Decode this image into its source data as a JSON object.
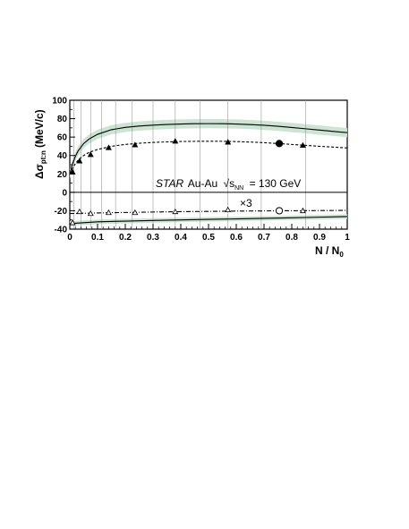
{
  "chart_data": {
    "type": "line",
    "xlabel": "N / N",
    "xlabel_sub": "0",
    "ylabel": "Δσ",
    "ylabel_sub": "pt:n",
    "ylabel_unit": "(MeV/c)",
    "xlim": [
      0,
      1
    ],
    "ylim": [
      -40,
      100
    ],
    "xticks": [
      0,
      0.1,
      0.2,
      0.3,
      0.4,
      0.5,
      0.6,
      0.7,
      0.8,
      0.9,
      1
    ],
    "xtick_labels": [
      "0",
      "0.1",
      "0.2",
      "0.3",
      "0.4",
      "0.5",
      "0.6",
      "0.7",
      "0.8",
      "0.9",
      "1"
    ],
    "yticks": [
      -40,
      -20,
      0,
      20,
      40,
      60,
      80,
      100
    ],
    "ytick_labels": [
      "-40",
      "-20",
      "0",
      "20",
      "40",
      "60",
      "80",
      "100"
    ],
    "annotation": {
      "star": "STAR",
      "system": "Au-Au",
      "sqrt": "√s",
      "sqrt_sub": "NN",
      "energy": "= 130 GeV"
    },
    "scale_label": "×3",
    "bin_edges": [
      0.015,
      0.04,
      0.075,
      0.115,
      0.165,
      0.225,
      0.3,
      0.38,
      0.47,
      0.57,
      0.69,
      0.85
    ],
    "series": [
      {
        "style": "solid-with-band",
        "color": "#000000",
        "band_color": "#cde3d4",
        "x": [
          0.0,
          0.01,
          0.02,
          0.03,
          0.05,
          0.07,
          0.1,
          0.15,
          0.2,
          0.25,
          0.3,
          0.35,
          0.4,
          0.45,
          0.5,
          0.55,
          0.6,
          0.65,
          0.7,
          0.75,
          0.8,
          0.85,
          0.9,
          0.95,
          1.0
        ],
        "y": [
          20,
          31,
          39,
          45,
          53,
          58,
          63,
          68,
          70.5,
          72,
          73,
          73.7,
          74.2,
          74.5,
          74.6,
          74.5,
          74.2,
          73.6,
          72.8,
          71.7,
          70.4,
          69,
          67.6,
          66.2,
          64.8
        ],
        "band_half_width": 5
      },
      {
        "style": "dashed-triangles-filled",
        "color": "#000000",
        "curve_x": [
          0.0,
          0.01,
          0.02,
          0.03,
          0.05,
          0.07,
          0.1,
          0.15,
          0.2,
          0.25,
          0.3,
          0.35,
          0.4,
          0.45,
          0.5,
          0.55,
          0.6,
          0.65,
          0.7,
          0.75,
          0.8,
          0.85,
          0.9,
          0.95,
          1.0
        ],
        "curve_y": [
          20,
          26,
          31,
          35,
          40,
          43.5,
          46.5,
          50,
          52,
          53.3,
          54.2,
          54.8,
          55.2,
          55.4,
          55.5,
          55.4,
          55.1,
          54.6,
          53.9,
          53,
          52,
          51,
          50,
          49.1,
          48.2
        ],
        "points_x": [
          0.01,
          0.035,
          0.075,
          0.14,
          0.235,
          0.38,
          0.57,
          0.755,
          0.84
        ],
        "points_y": [
          22,
          34,
          41,
          48.5,
          51.5,
          55.5,
          54.5,
          53,
          51
        ],
        "highlight_index": 7
      },
      {
        "style": "dashdot-triangles-open",
        "color": "#000000",
        "curve_x": [
          0.0,
          0.05,
          0.1,
          0.2,
          0.3,
          0.4,
          0.5,
          0.6,
          0.7,
          0.8,
          0.9,
          1.0
        ],
        "curve_y": [
          -23,
          -22.7,
          -22.4,
          -21.9,
          -21.4,
          -21,
          -20.7,
          -20.4,
          -20.2,
          -20,
          -19.8,
          -19.6
        ],
        "points_x": [
          0.01,
          0.035,
          0.075,
          0.14,
          0.235,
          0.38,
          0.57,
          0.755,
          0.84
        ],
        "points_y": [
          -33,
          -21,
          -23,
          -22,
          -22,
          -21,
          -19,
          -20,
          -20
        ],
        "highlight_index": 7
      },
      {
        "style": "solid-with-band",
        "color": "#000000",
        "band_color": "#cde3d4",
        "x": [
          0.0,
          0.1,
          0.2,
          0.3,
          0.4,
          0.5,
          0.6,
          0.7,
          0.8,
          0.9,
          1.0
        ],
        "y": [
          -34,
          -32,
          -31.3,
          -30.6,
          -30,
          -29.4,
          -28.9,
          -28.3,
          -27.7,
          -27,
          -26.3
        ],
        "band_half_width": 2.5
      }
    ]
  }
}
